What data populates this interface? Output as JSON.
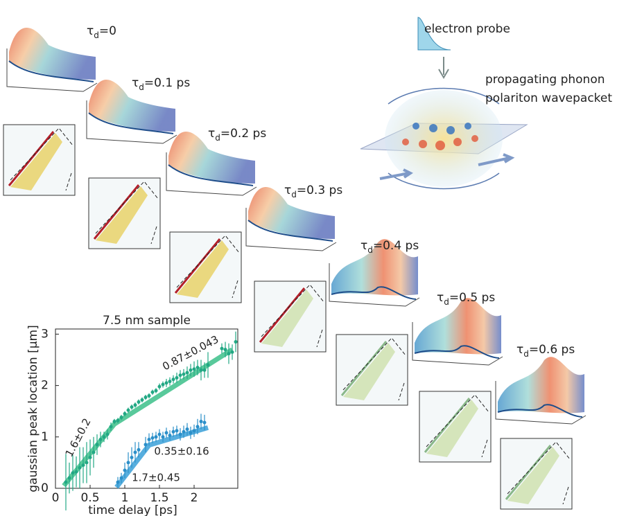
{
  "panels": [
    {
      "tau": "τ",
      "sub": "d",
      "rest": "=0"
    },
    {
      "tau": "τ",
      "sub": "d",
      "rest": "=0.1 ps"
    },
    {
      "tau": "τ",
      "sub": "d",
      "rest": "=0.2 ps"
    },
    {
      "tau": "τ",
      "sub": "d",
      "rest": "=0.3 ps"
    },
    {
      "tau": "τ",
      "sub": "d",
      "rest": "=0.4 ps"
    },
    {
      "tau": "τ",
      "sub": "d",
      "rest": "=0.5 ps"
    },
    {
      "tau": "τ",
      "sub": "d",
      "rest": "=0.6 ps"
    }
  ],
  "schematic": {
    "probe_label": "electron probe",
    "wave_label_1": "propagating phonon",
    "wave_label_2": "polariton wavepacket"
  },
  "chart_data": {
    "type": "scatter",
    "title": "7.5 nm sample",
    "xlabel": "time delay [ps]",
    "ylabel": "gaussian peak location  [μm]",
    "xlim": [
      0,
      2.63
    ],
    "ylim": [
      0,
      3.1
    ],
    "xticks": [
      0,
      0.5,
      1,
      1.5,
      2
    ],
    "yticks": [
      0,
      1,
      2,
      3
    ],
    "series": [
      {
        "color": "#22a884",
        "x": [
          0.15,
          0.2,
          0.25,
          0.3,
          0.35,
          0.4,
          0.45,
          0.5,
          0.55,
          0.6,
          0.65,
          0.7,
          0.75,
          0.8,
          0.85,
          0.9,
          0.95,
          1.0,
          1.05,
          1.1,
          1.15,
          1.2,
          1.25,
          1.3,
          1.35,
          1.4,
          1.45,
          1.5,
          1.55,
          1.6,
          1.65,
          1.7,
          1.75,
          1.8,
          1.85,
          1.9,
          1.95,
          2.0,
          2.05,
          2.1,
          2.15,
          2.2,
          2.4,
          2.45,
          2.5,
          2.55,
          2.6
        ],
        "values": [
          0.12,
          0.2,
          0.3,
          0.32,
          0.4,
          0.45,
          0.5,
          0.6,
          0.7,
          0.85,
          0.95,
          1.0,
          1.05,
          1.2,
          1.3,
          1.32,
          1.38,
          1.45,
          1.52,
          1.58,
          1.62,
          1.68,
          1.72,
          1.77,
          1.8,
          1.87,
          1.9,
          1.98,
          2.02,
          2.05,
          2.08,
          2.12,
          2.15,
          2.2,
          2.22,
          2.25,
          2.3,
          2.32,
          2.35,
          2.3,
          2.3,
          2.4,
          2.72,
          2.7,
          2.62,
          2.65,
          2.85
        ],
        "errors": [
          0.55,
          0.3,
          0.35,
          0.3,
          0.4,
          0.35,
          0.4,
          0.35,
          0.3,
          0.2,
          0.15,
          0.1,
          0.1,
          0.08,
          0.05,
          0.05,
          0.05,
          0.05,
          0.05,
          0.05,
          0.05,
          0.05,
          0.05,
          0.05,
          0.05,
          0.05,
          0.05,
          0.06,
          0.06,
          0.08,
          0.08,
          0.08,
          0.1,
          0.1,
          0.1,
          0.12,
          0.12,
          0.15,
          0.15,
          0.2,
          0.15,
          0.25,
          0.1,
          0.15,
          0.2,
          0.15,
          0.2
        ]
      },
      {
        "color": "#2b8fc9",
        "x": [
          0.9,
          0.95,
          1.0,
          1.05,
          1.1,
          1.15,
          1.2,
          1.3,
          1.35,
          1.4,
          1.45,
          1.5,
          1.55,
          1.6,
          1.65,
          1.7,
          1.75,
          1.8,
          1.85,
          1.9,
          1.95,
          2.0,
          2.05,
          2.1,
          2.15
        ],
        "values": [
          0.12,
          0.2,
          0.35,
          0.5,
          0.6,
          0.7,
          0.75,
          0.85,
          0.95,
          0.98,
          1.0,
          1.05,
          1.0,
          1.08,
          1.03,
          1.1,
          1.12,
          1.05,
          1.1,
          1.15,
          1.08,
          1.12,
          1.2,
          1.3,
          1.28
        ],
        "errors": [
          0.1,
          0.1,
          0.15,
          0.2,
          0.2,
          0.2,
          0.15,
          0.15,
          0.12,
          0.1,
          0.1,
          0.1,
          0.1,
          0.1,
          0.1,
          0.1,
          0.1,
          0.12,
          0.12,
          0.12,
          0.12,
          0.12,
          0.15,
          0.15,
          0.15
        ]
      }
    ],
    "fits": [
      {
        "color": "#3cc08a",
        "x": [
          0.12,
          0.85,
          2.55
        ],
        "values": [
          0.05,
          1.25,
          2.7
        ]
      },
      {
        "color": "#3aa0d8",
        "x": [
          0.88,
          1.35,
          2.2
        ],
        "values": [
          0.02,
          0.84,
          1.18
        ]
      }
    ],
    "annotations": [
      {
        "text": "1.6±0.2",
        "color": "#22a884"
      },
      {
        "text": "0.87±0.043",
        "color": "#22a884"
      },
      {
        "text": "0.35±0.16",
        "color": "#2b8fc9"
      },
      {
        "text": "1.7±0.45",
        "color": "#2b8fc9"
      }
    ]
  }
}
